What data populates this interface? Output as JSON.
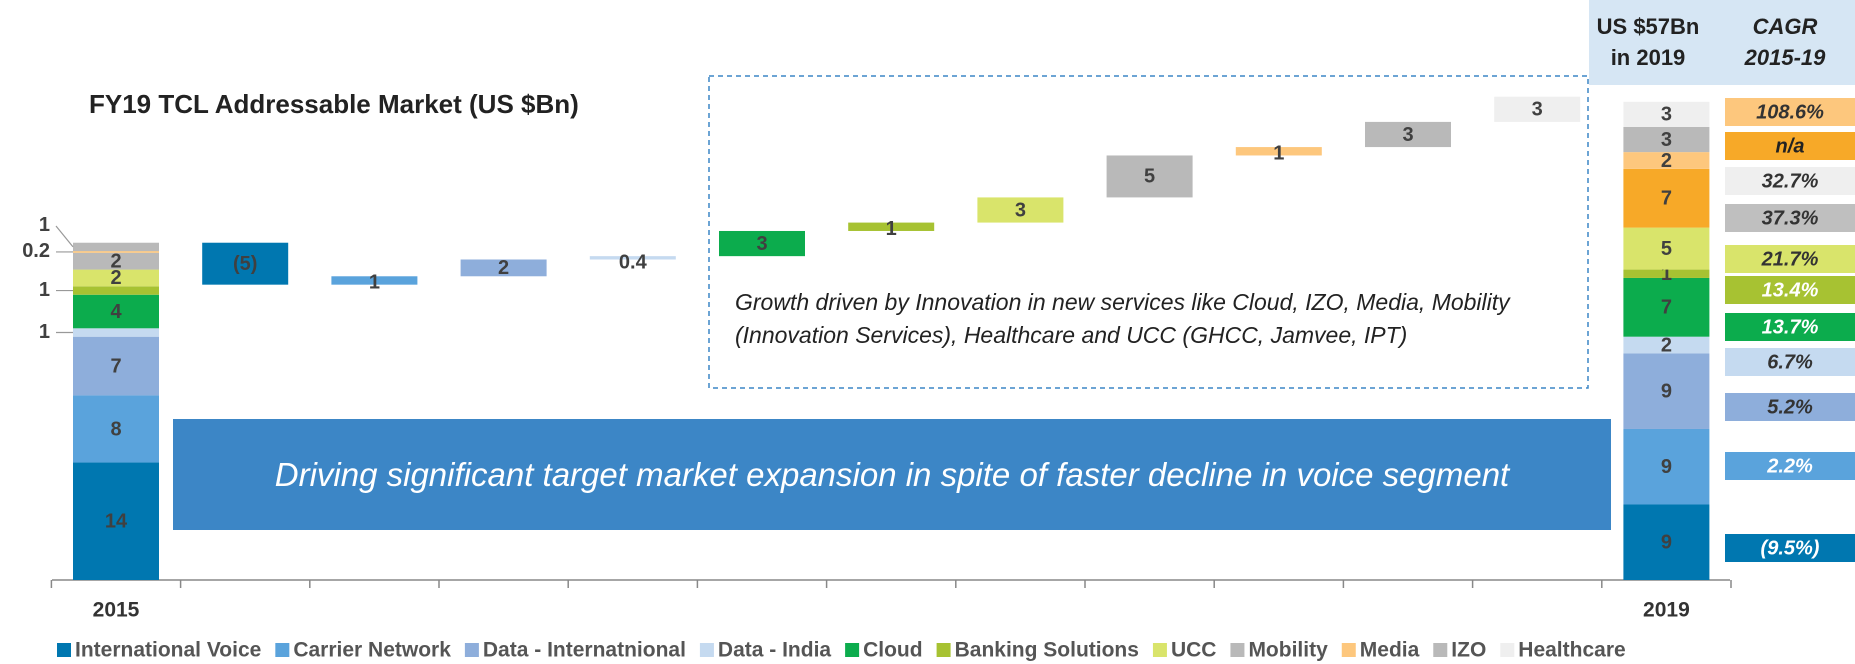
{
  "chart_data": {
    "type": "waterfall",
    "title": "FY19 TCL Addressable Market (US $Bn)",
    "categories": [
      "2015",
      "2019"
    ],
    "series": [
      {
        "name": "International Voice",
        "color": "#0077b0",
        "end_color": "#0077b0",
        "start": 14,
        "change": -5,
        "change_label": "(5)",
        "end": 9
      },
      {
        "name": "Carrier Network",
        "color": "#5aa3dc",
        "end_color": "#5aa3dc",
        "start": 8,
        "change": 1,
        "end": 9
      },
      {
        "name": "Data - Internatnional",
        "color": "#8eaedb",
        "end_color": "#8eaedb",
        "start": 7,
        "change": 2,
        "end": 9
      },
      {
        "name": "Data - India",
        "color": "#c5daf0",
        "end_color": "#c5daf0",
        "start": 1,
        "change": 0.4,
        "end": 2
      },
      {
        "name": "Cloud",
        "color": "#0cac4d",
        "end_color": "#0cac4d",
        "start": 4,
        "change": 3,
        "end": 7
      },
      {
        "name": "Banking Solutions",
        "color": "#a7c232",
        "end_color": "#a7c232",
        "start": 1,
        "change": 1,
        "end": 1
      },
      {
        "name": "UCC",
        "color": "#d9e46b",
        "end_color": "#d9e46b",
        "start": 2,
        "change": 3,
        "end": 5
      },
      {
        "name": "Mobility",
        "color": "#b9b9b9",
        "end_color": "#f7a928",
        "start": 2,
        "change": 5,
        "end": 7
      },
      {
        "name": "Media",
        "color": "#fdc77d",
        "end_color": "#fdc77d",
        "start": 0.2,
        "change": 1,
        "end": 2
      },
      {
        "name": "IZO",
        "color": "#b9b9b9",
        "end_color": "#b9b9b9",
        "start": 1,
        "change": 3,
        "end": 3
      },
      {
        "name": "Healthcare",
        "color": "#efefef",
        "end_color": "#efefef",
        "change": 3,
        "end": 3
      }
    ],
    "total": "US $57Bn",
    "total_note": "in 2019",
    "cagr_title": "CAGR",
    "cagr_period": "2015-19",
    "cagr": [
      {
        "label": "108.6%",
        "color": "#fdc77d",
        "text_color": "#333333"
      },
      {
        "label": "n/a",
        "color": "#f7a928",
        "text_color": "#222222"
      },
      {
        "label": "32.7%",
        "color": "#efefef",
        "text_color": "#333333"
      },
      {
        "label": "37.3%",
        "color": "#bfbfbf",
        "text_color": "#333333"
      },
      {
        "label": "21.7%",
        "color": "#d9e46b",
        "text_color": "#333333"
      },
      {
        "label": "13.4%",
        "color": "#a7c232",
        "text_color": "#ffffff"
      },
      {
        "label": "13.7%",
        "color": "#0cac4d",
        "text_color": "#ffffff"
      },
      {
        "label": "6.7%",
        "color": "#c5daf0",
        "text_color": "#333333"
      },
      {
        "label": "5.2%",
        "color": "#8eaedb",
        "text_color": "#333333"
      },
      {
        "label": "2.2%",
        "color": "#5aa3dc",
        "text_color": "#ffffff"
      },
      {
        "label": "(9.5%)",
        "color": "#0077b0",
        "text_color": "#ffffff"
      }
    ],
    "annotation": "Growth driven by Innovation in new services like Cloud, IZO, Media, Mobility (Innovation Services), Healthcare and UCC (GHCC, Jamvee, IPT)",
    "banner": "Driving significant target market expansion in spite of faster decline in voice segment"
  }
}
